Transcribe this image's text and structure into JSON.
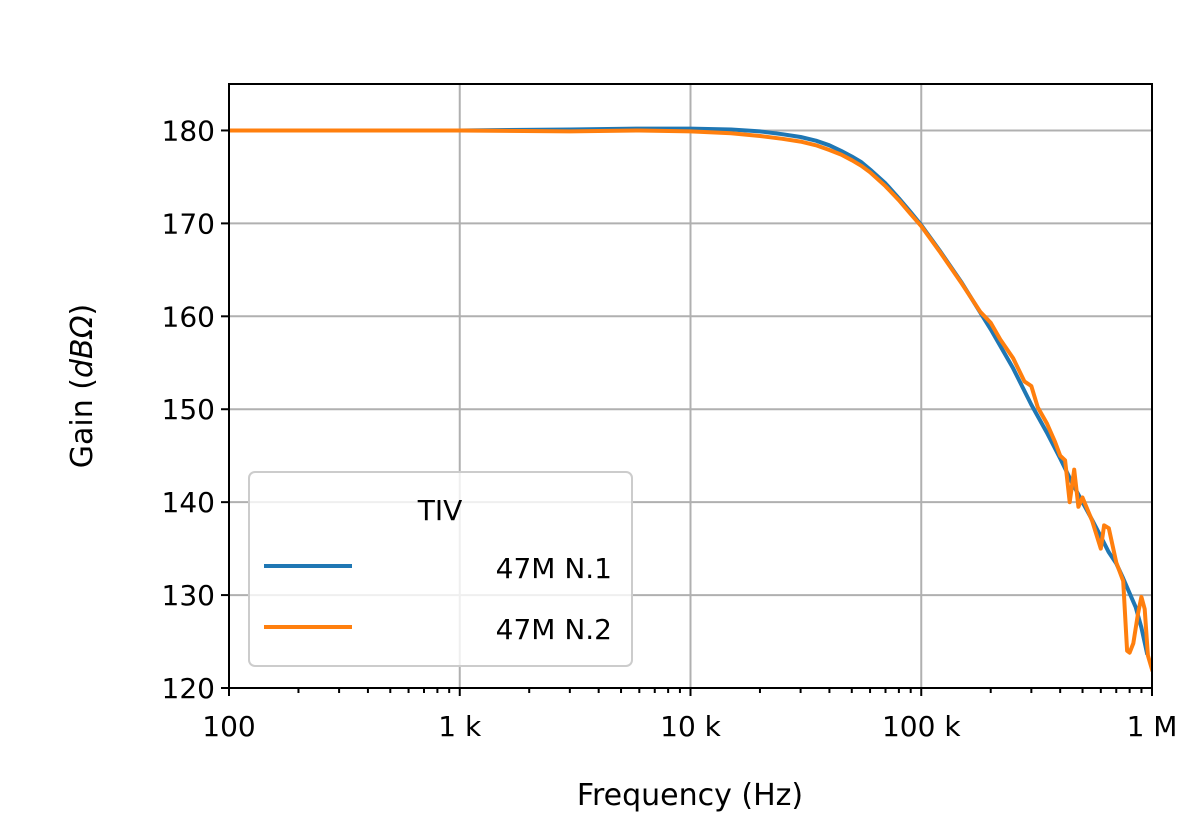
{
  "chart_data": {
    "type": "line",
    "title": "",
    "xlabel": "Frequency (Hz)",
    "ylabel_prefix": "Gain (",
    "ylabel_unit": "dBΩ",
    "ylabel_suffix": ")",
    "x_scale": "log",
    "xlim": [
      100,
      1000000
    ],
    "ylim": [
      120,
      185
    ],
    "grid": true,
    "x_ticks": [
      {
        "value": 100,
        "label": "100"
      },
      {
        "value": 1000,
        "label": "1 k"
      },
      {
        "value": 10000,
        "label": "10 k"
      },
      {
        "value": 100000,
        "label": "100 k"
      },
      {
        "value": 1000000,
        "label": "1 M"
      }
    ],
    "y_ticks": [
      {
        "value": 120,
        "label": "120"
      },
      {
        "value": 130,
        "label": "130"
      },
      {
        "value": 140,
        "label": "140"
      },
      {
        "value": 150,
        "label": "150"
      },
      {
        "value": 160,
        "label": "160"
      },
      {
        "value": 170,
        "label": "170"
      },
      {
        "value": 180,
        "label": "180"
      }
    ],
    "legend": {
      "title": "TIV",
      "location": "lower-left"
    },
    "series": [
      {
        "name": "47M N.1",
        "color": "#1f77b4",
        "x": [
          100,
          300,
          1000,
          3000,
          6000,
          10000,
          15000,
          20000,
          25000,
          30000,
          35000,
          40000,
          45000,
          50000,
          55000,
          60000,
          70000,
          80000,
          90000,
          100000,
          120000,
          150000,
          200000,
          250000,
          300000,
          350000,
          400000,
          450000,
          500000,
          550000,
          600000,
          650000,
          700000,
          750000,
          800000,
          850000,
          900000,
          950000
        ],
        "y": [
          180,
          180,
          180,
          180.1,
          180.2,
          180.2,
          180.1,
          179.9,
          179.6,
          179.3,
          178.9,
          178.4,
          177.8,
          177.2,
          176.6,
          175.8,
          174.3,
          172.7,
          171.2,
          169.8,
          167.1,
          163.6,
          158.6,
          154.4,
          150.5,
          147.5,
          144.7,
          142.1,
          140.0,
          138.1,
          136.3,
          134.6,
          133.4,
          131.8,
          130.2,
          128.7,
          126.5,
          123.8
        ]
      },
      {
        "name": "47M N.2",
        "color": "#ff7f0e",
        "x": [
          100,
          300,
          1000,
          3000,
          6000,
          10000,
          15000,
          20000,
          25000,
          30000,
          35000,
          40000,
          45000,
          50000,
          55000,
          60000,
          70000,
          80000,
          90000,
          100000,
          120000,
          150000,
          180000,
          200000,
          220000,
          250000,
          280000,
          300000,
          320000,
          350000,
          380000,
          400000,
          420000,
          440000,
          460000,
          480000,
          500000,
          550000,
          600000,
          620000,
          650000,
          700000,
          750000,
          780000,
          800000,
          830000,
          870000,
          900000,
          930000,
          960000,
          1000000
        ],
        "y": [
          180,
          180,
          180,
          179.9,
          180.0,
          179.9,
          179.7,
          179.4,
          179.1,
          178.8,
          178.4,
          177.9,
          177.4,
          176.8,
          176.2,
          175.5,
          174.0,
          172.5,
          171.0,
          169.7,
          167.0,
          163.5,
          160.5,
          159.3,
          157.5,
          155.5,
          153.0,
          152.5,
          150.2,
          148.5,
          146.5,
          145.0,
          144.5,
          140.0,
          143.5,
          139.5,
          140.5,
          138.0,
          135.0,
          137.5,
          137.2,
          133.5,
          131.5,
          124.0,
          123.8,
          124.8,
          128.0,
          129.8,
          128.5,
          123.5,
          122.0
        ]
      }
    ]
  }
}
